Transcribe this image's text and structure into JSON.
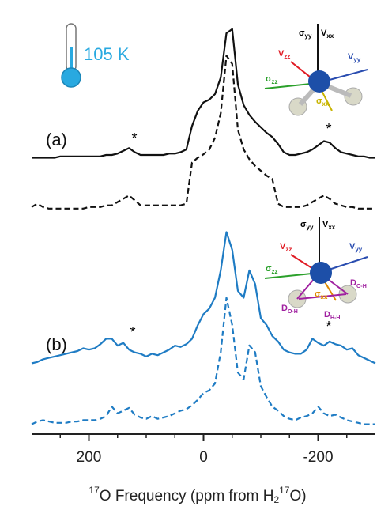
{
  "chart_data": {
    "type": "line",
    "temperature": "105 K",
    "panel_labels": [
      "(a)",
      "(b)"
    ],
    "annotations": [
      "*",
      "*",
      "*",
      "*"
    ],
    "x_label": [
      "17",
      "O Frequency (ppm from H",
      "2",
      "17",
      "O)"
    ],
    "xlim": [
      300,
      -300
    ],
    "xticks": [
      200,
      0,
      -200
    ],
    "xminorticks": [
      250,
      150,
      100,
      50,
      -50,
      -100,
      -150,
      -250
    ],
    "x": [
      300,
      290,
      280,
      270,
      260,
      250,
      240,
      230,
      220,
      210,
      200,
      190,
      180,
      170,
      160,
      150,
      140,
      130,
      120,
      110,
      100,
      90,
      80,
      70,
      60,
      50,
      40,
      30,
      20,
      10,
      0,
      -10,
      -20,
      -30,
      -40,
      -50,
      -60,
      -70,
      -80,
      -90,
      -100,
      -110,
      -120,
      -130,
      -140,
      -150,
      -160,
      -170,
      -180,
      -190,
      -200,
      -210,
      -220,
      -230,
      -240,
      -250,
      -260,
      -270,
      -280,
      -290,
      -300
    ],
    "series": [
      {
        "color": "#111111",
        "dashed": false,
        "values": [
          0.02,
          0.02,
          0.02,
          0.02,
          0.02,
          0.03,
          0.03,
          0.03,
          0.03,
          0.03,
          0.03,
          0.03,
          0.03,
          0.04,
          0.04,
          0.05,
          0.07,
          0.09,
          0.06,
          0.04,
          0.04,
          0.04,
          0.04,
          0.04,
          0.05,
          0.05,
          0.06,
          0.08,
          0.25,
          0.36,
          0.42,
          0.44,
          0.48,
          0.6,
          0.92,
          0.95,
          0.55,
          0.4,
          0.33,
          0.28,
          0.24,
          0.2,
          0.17,
          0.12,
          0.06,
          0.04,
          0.04,
          0.05,
          0.06,
          0.08,
          0.11,
          0.14,
          0.13,
          0.09,
          0.06,
          0.05,
          0.04,
          0.03,
          0.03,
          0.02,
          0.02
        ]
      },
      {
        "color": "#111111",
        "dashed": true,
        "values": [
          0.03,
          0.05,
          0.03,
          0.02,
          0.02,
          0.02,
          0.02,
          0.02,
          0.02,
          0.02,
          0.03,
          0.03,
          0.03,
          0.04,
          0.04,
          0.06,
          0.08,
          0.1,
          0.07,
          0.04,
          0.04,
          0.04,
          0.04,
          0.04,
          0.04,
          0.04,
          0.04,
          0.05,
          0.3,
          0.33,
          0.35,
          0.38,
          0.45,
          0.6,
          0.95,
          0.9,
          0.5,
          0.38,
          0.32,
          0.28,
          0.25,
          0.22,
          0.2,
          0.05,
          0.03,
          0.03,
          0.03,
          0.03,
          0.04,
          0.06,
          0.08,
          0.1,
          0.08,
          0.05,
          0.04,
          0.03,
          0.03,
          0.02,
          0.02,
          0.02,
          0.02
        ]
      },
      {
        "color": "#1f7cc4",
        "dashed": false,
        "values": [
          0.02,
          0.03,
          0.05,
          0.06,
          0.07,
          0.08,
          0.09,
          0.1,
          0.11,
          0.13,
          0.12,
          0.13,
          0.16,
          0.2,
          0.2,
          0.15,
          0.17,
          0.12,
          0.1,
          0.09,
          0.07,
          0.09,
          0.08,
          0.1,
          0.12,
          0.15,
          0.14,
          0.16,
          0.2,
          0.3,
          0.38,
          0.42,
          0.5,
          0.7,
          0.98,
          0.85,
          0.55,
          0.5,
          0.7,
          0.6,
          0.35,
          0.3,
          0.22,
          0.18,
          0.12,
          0.1,
          0.09,
          0.09,
          0.12,
          0.2,
          0.17,
          0.15,
          0.18,
          0.16,
          0.15,
          0.12,
          0.13,
          0.08,
          0.06,
          0.04,
          0.02
        ]
      },
      {
        "color": "#1f7cc4",
        "dashed": true,
        "values": [
          0.02,
          0.04,
          0.05,
          0.04,
          0.03,
          0.03,
          0.03,
          0.04,
          0.04,
          0.05,
          0.05,
          0.05,
          0.06,
          0.08,
          0.15,
          0.1,
          0.12,
          0.14,
          0.09,
          0.07,
          0.06,
          0.08,
          0.06,
          0.07,
          0.08,
          0.1,
          0.12,
          0.13,
          0.16,
          0.2,
          0.25,
          0.27,
          0.32,
          0.55,
          0.95,
          0.75,
          0.4,
          0.35,
          0.6,
          0.55,
          0.3,
          0.22,
          0.15,
          0.12,
          0.08,
          0.06,
          0.05,
          0.07,
          0.08,
          0.1,
          0.15,
          0.1,
          0.08,
          0.09,
          0.07,
          0.05,
          0.04,
          0.03,
          0.02,
          0.02,
          0.02
        ]
      }
    ],
    "insets": [
      {
        "labels": [
          [
            "σ",
            "yy"
          ],
          [
            "V",
            "xx"
          ],
          [
            "V",
            "zz"
          ],
          [
            "V",
            "yy"
          ],
          [
            "σ",
            "zz"
          ],
          [
            "σ",
            "xx"
          ]
        ]
      },
      {
        "labels": [
          [
            "σ",
            "yy"
          ],
          [
            "V",
            "xx"
          ],
          [
            "V",
            "zz"
          ],
          [
            "V",
            "yy"
          ],
          [
            "σ",
            "zz"
          ],
          [
            "σ",
            "xx"
          ],
          [
            "D",
            "O-H"
          ],
          [
            "D",
            "O-H"
          ],
          [
            "D",
            "H-H"
          ]
        ]
      }
    ]
  }
}
